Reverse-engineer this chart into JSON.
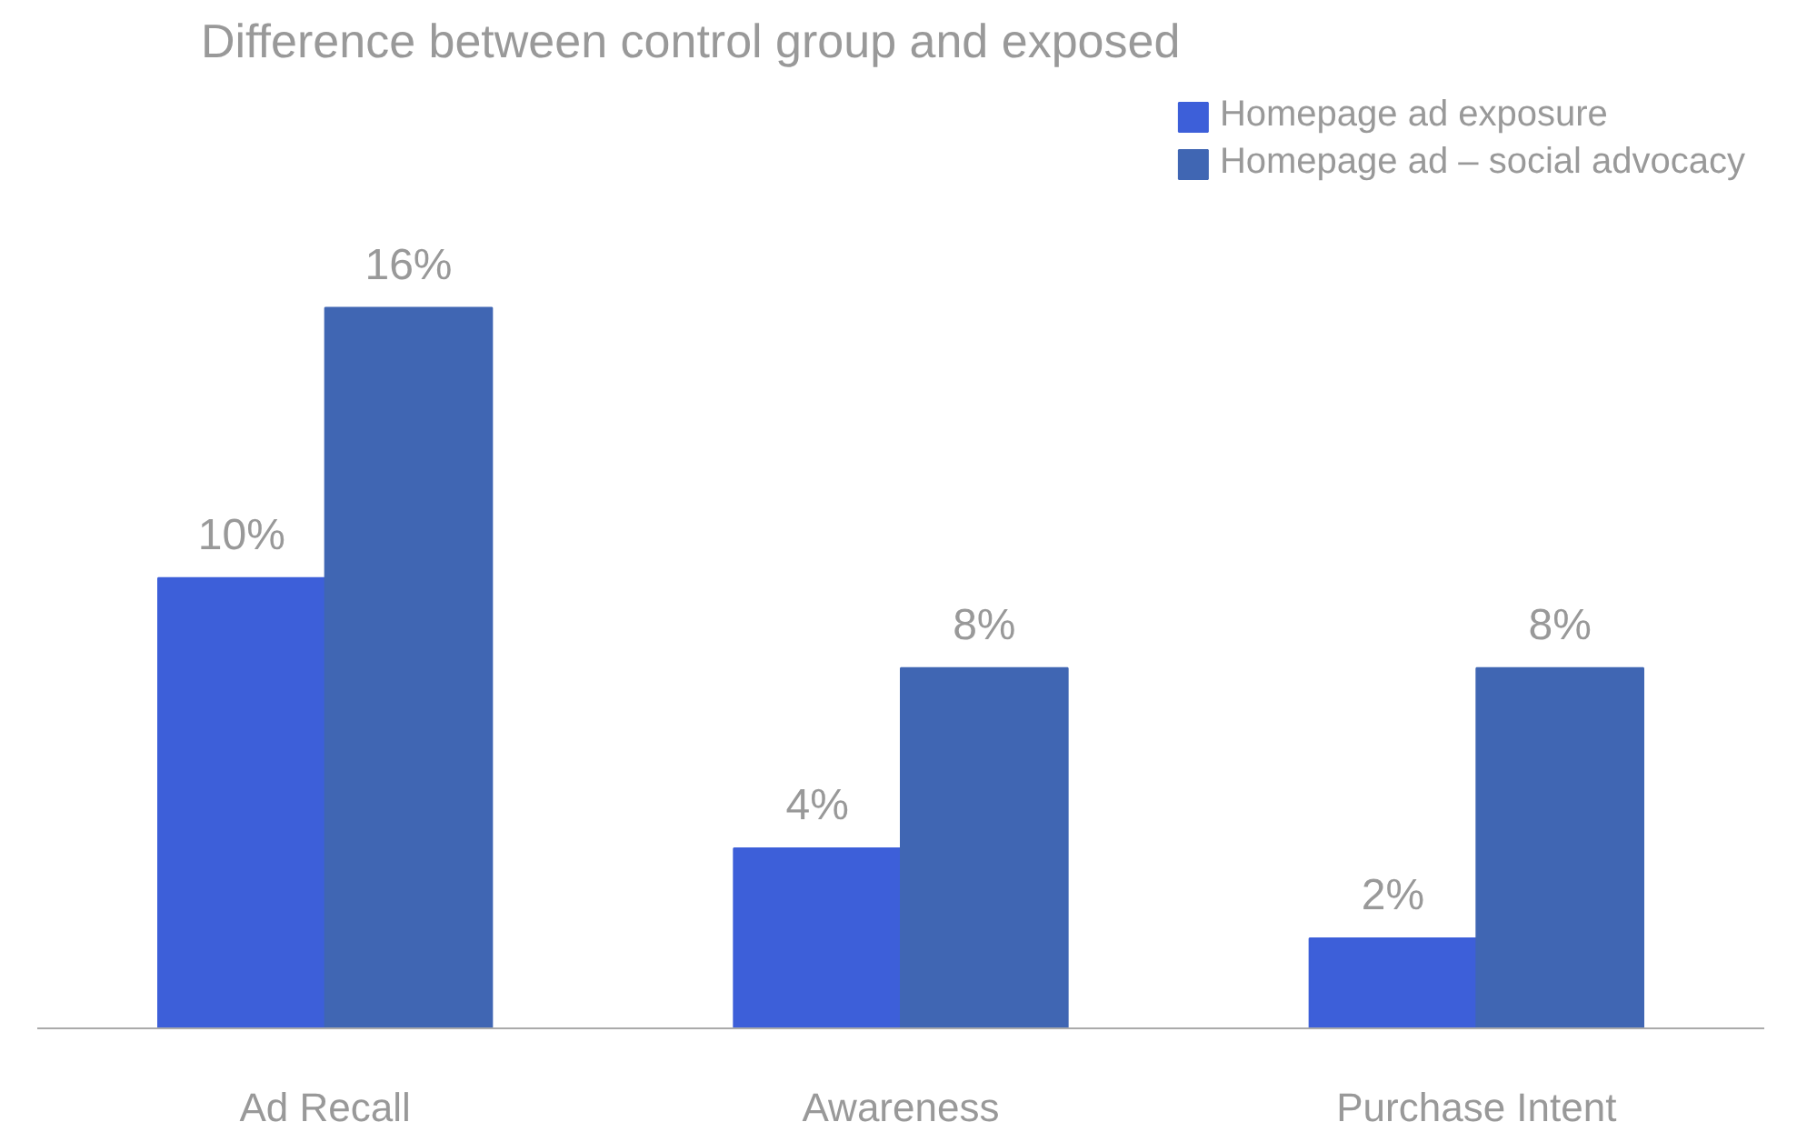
{
  "chart_data": {
    "type": "bar",
    "title": "Difference between control group and exposed",
    "categories": [
      "Ad Recall",
      "Awareness",
      "Purchase Intent"
    ],
    "series": [
      {
        "name": "Homepage ad exposure",
        "color": "#3d5fd9",
        "values": [
          10,
          4,
          2
        ],
        "value_labels": [
          "10%",
          "4%",
          "2%"
        ]
      },
      {
        "name": "Homepage ad – social advocacy",
        "color": "#4066b3",
        "values": [
          16,
          8,
          8
        ],
        "value_labels": [
          "16%",
          "8%",
          "8%"
        ]
      }
    ],
    "legend": "top right",
    "grid": false
  }
}
